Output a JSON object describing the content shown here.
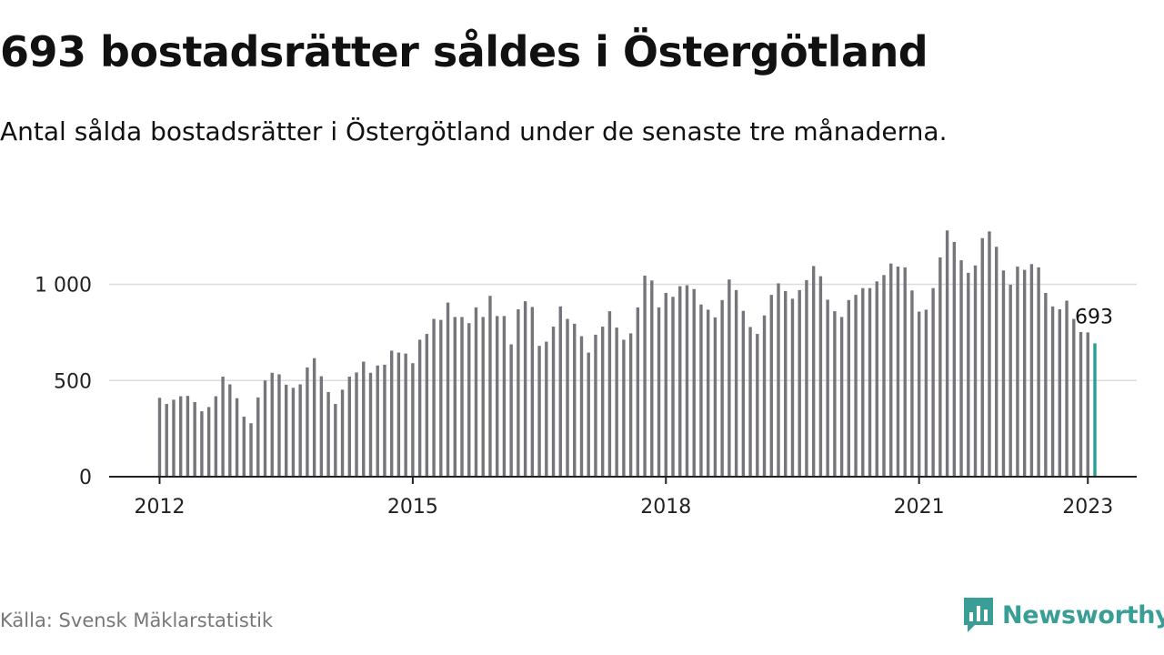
{
  "title": "693 bostadsrätter såldes i Östergötland",
  "subtitle": "Antal sålda bostadsrätter i Östergötland under de senaste tre månaderna.",
  "source": "Källa: Svensk Mäklarstatistik",
  "brand": {
    "name": "Newsworthy",
    "icon": "bar-chart-speech-bubble-icon"
  },
  "colors": {
    "bar": "#75757b",
    "highlight": "#2a9d96",
    "grid": "#dcdcdc",
    "axis": "#222222"
  },
  "chart_data": {
    "type": "bar",
    "title": "693 bostadsrätter såldes i Östergötland",
    "subtitle": "Antal sålda bostadsrätter i Östergötland under de senaste tre månaderna.",
    "xlabel": "",
    "ylabel": "",
    "x_start": "2012-01",
    "x_ticks": [
      {
        "label": "2012",
        "x": "2012-01"
      },
      {
        "label": "2015",
        "x": "2015-01"
      },
      {
        "label": "2018",
        "x": "2018-01"
      },
      {
        "label": "2021",
        "x": "2021-01"
      },
      {
        "label": "2023",
        "x": "2023-01"
      }
    ],
    "y_ticks": [
      {
        "label": "0",
        "value": 0
      },
      {
        "label": "500",
        "value": 500
      },
      {
        "label": "1 000",
        "value": 1000
      }
    ],
    "ylim": [
      0,
      1300
    ],
    "grid": true,
    "highlight_last": true,
    "last_label": "693",
    "values": [
      410,
      378,
      400,
      418,
      420,
      388,
      340,
      362,
      418,
      520,
      480,
      408,
      312,
      278,
      412,
      500,
      540,
      532,
      478,
      462,
      480,
      568,
      616,
      522,
      440,
      378,
      452,
      520,
      542,
      598,
      540,
      578,
      582,
      655,
      645,
      640,
      590,
      712,
      742,
      820,
      815,
      905,
      830,
      830,
      798,
      880,
      830,
      940,
      835,
      835,
      688,
      870,
      912,
      882,
      680,
      702,
      780,
      885,
      820,
      795,
      730,
      645,
      738,
      780,
      860,
      775,
      712,
      745,
      880,
      1045,
      1020,
      880,
      955,
      935,
      990,
      995,
      975,
      895,
      868,
      828,
      918,
      1025,
      970,
      862,
      778,
      742,
      838,
      945,
      1005,
      965,
      925,
      970,
      1022,
      1095,
      1042,
      920,
      860,
      830,
      918,
      945,
      980,
      980,
      1015,
      1048,
      1108,
      1092,
      1088,
      968,
      858,
      868,
      980,
      1140,
      1280,
      1220,
      1125,
      1060,
      1098,
      1240,
      1275,
      1195,
      1072,
      998,
      1092,
      1075,
      1105,
      1088,
      955,
      885,
      870,
      915,
      820,
      752,
      750,
      693
    ]
  }
}
